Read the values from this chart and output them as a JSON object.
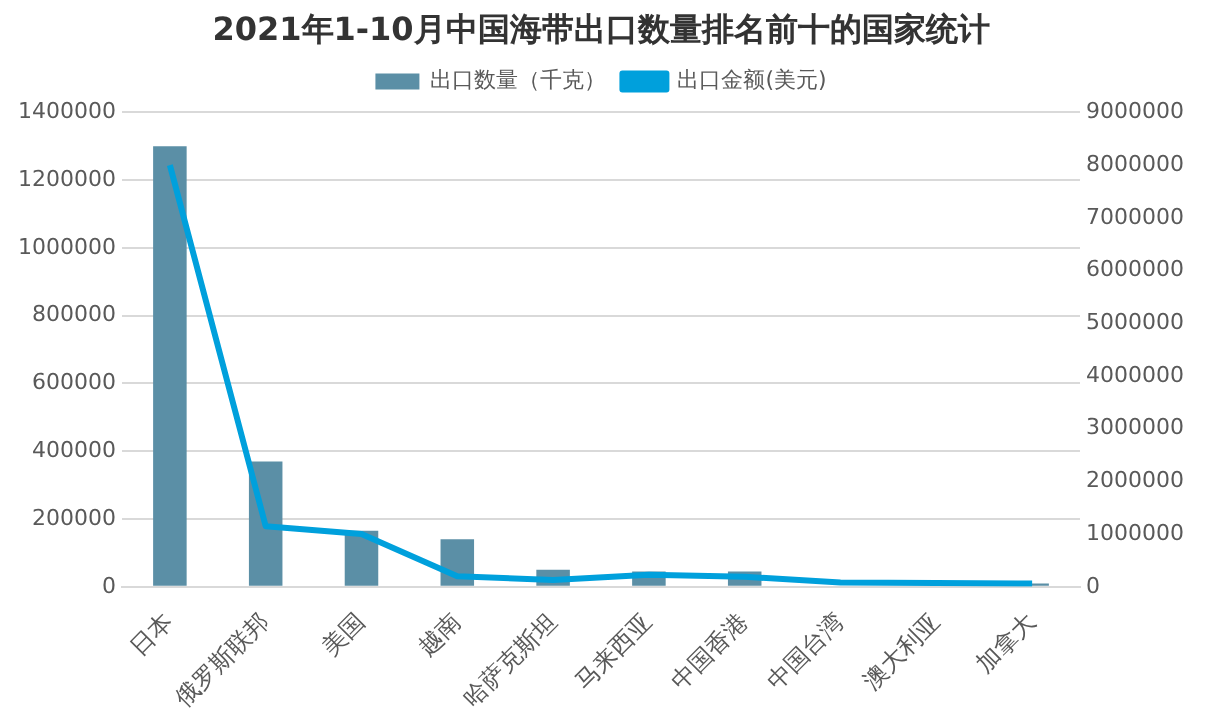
{
  "chart_data": {
    "type": "bar",
    "title": "2021年1-10月中国海带出口数量排名前十的国家统计",
    "categories": [
      "日本",
      "俄罗斯联邦",
      "美国",
      "越南",
      "哈萨克斯坦",
      "马来西亚",
      "中国香港",
      "中国台湾",
      "澳大利亚",
      "加拿大"
    ],
    "series": [
      {
        "name": "出口数量（千克）",
        "color": "#5b8fa6",
        "values": [
          1300000,
          370000,
          165000,
          140000,
          50000,
          45000,
          45000,
          null,
          null,
          10000
        ]
      },
      {
        "name": "出口金额(美元)",
        "type": "line",
        "axis": "y2",
        "color": "#00a0dc",
        "values": [
          8000000,
          1150000,
          1000000,
          200000,
          130000,
          230000,
          190000,
          80000,
          70000,
          60000
        ]
      }
    ],
    "ylim": [
      0,
      1400000
    ],
    "yticks": [
      0,
      200000,
      400000,
      600000,
      800000,
      1000000,
      1200000,
      1400000
    ],
    "y2lim": [
      0,
      9000000
    ],
    "y2ticks": [
      0,
      1000000,
      2000000,
      3000000,
      4000000,
      5000000,
      6000000,
      7000000,
      8000000,
      9000000
    ],
    "grid": "y",
    "legend": "top",
    "marker": "none"
  }
}
